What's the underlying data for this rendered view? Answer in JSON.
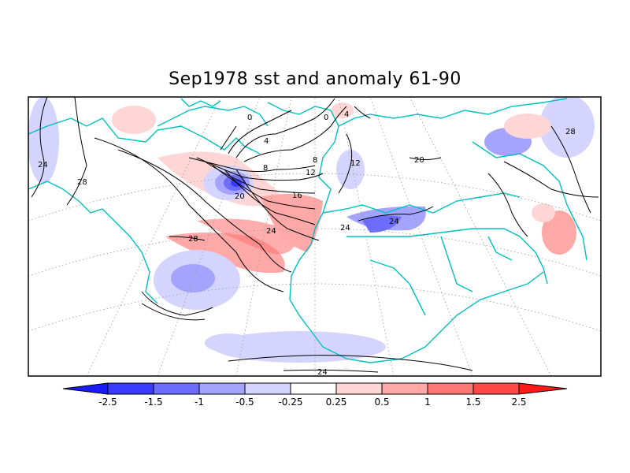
{
  "title": "Sep1978 sst and anomaly 61-90",
  "colorbar": {
    "bins": [
      {
        "color": "#1a1aff"
      },
      {
        "color": "#3a3aff"
      },
      {
        "color": "#6c6cff"
      },
      {
        "color": "#a4a4ff"
      },
      {
        "color": "#d4d4ff"
      },
      {
        "color": "#ffffff"
      },
      {
        "color": "#ffd6d6"
      },
      {
        "color": "#ffa8a8"
      },
      {
        "color": "#ff7676"
      },
      {
        "color": "#ff4848"
      },
      {
        "color": "#ff1a1a"
      }
    ],
    "ticks": [
      "-2.5",
      "-1.5",
      "-1",
      "-0.5",
      "-0.25",
      "0.25",
      "0.5",
      "1",
      "1.5",
      "2.5"
    ]
  },
  "contour_labels": [
    "24",
    "28",
    "28",
    "24",
    "20",
    "16",
    "12",
    "8",
    "4",
    "0",
    "4",
    "8",
    "12",
    "20",
    "24",
    "24",
    "28",
    "24",
    "0"
  ],
  "colors": {
    "coast": "#00c0c0",
    "contour": "#000000",
    "grid": "#9a9a9a"
  }
}
